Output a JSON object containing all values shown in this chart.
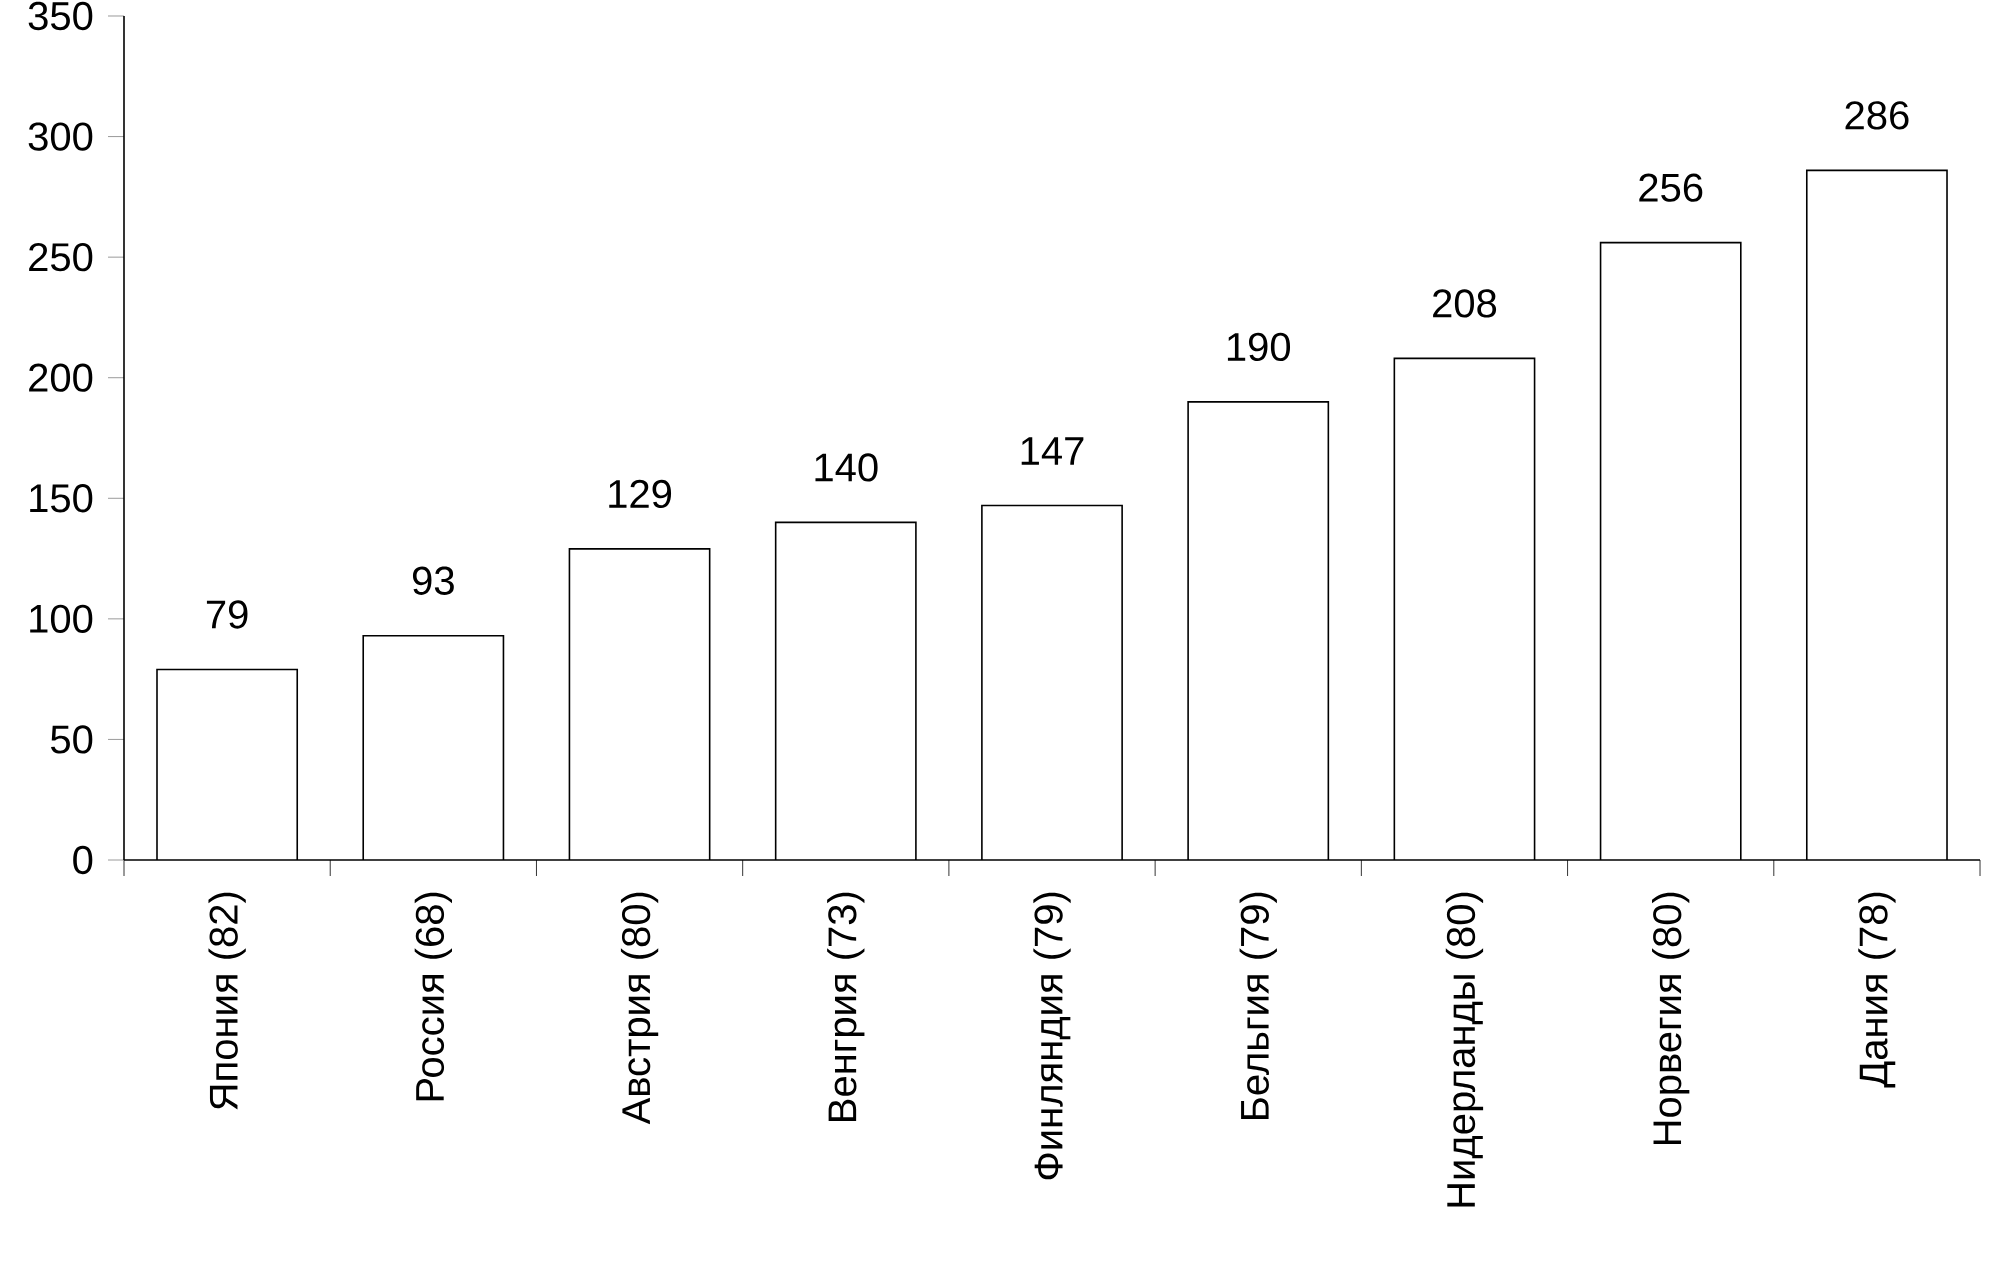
{
  "chart_data": {
    "type": "bar",
    "categories": [
      "Япония (82)",
      "Россия (68)",
      "Австрия (80)",
      "Венгрия (73)",
      "Финляндия (79)",
      "Бельгия (79)",
      "Нидерланды (80)",
      "Норвегия (80)",
      "Дания (78)"
    ],
    "values": [
      79,
      93,
      129,
      140,
      147,
      190,
      208,
      256,
      286
    ],
    "color": "#ffffff",
    "ylim": [
      0,
      350
    ],
    "yticks": [
      0,
      50,
      100,
      150,
      200,
      250,
      300,
      350
    ],
    "data_labels": true
  }
}
